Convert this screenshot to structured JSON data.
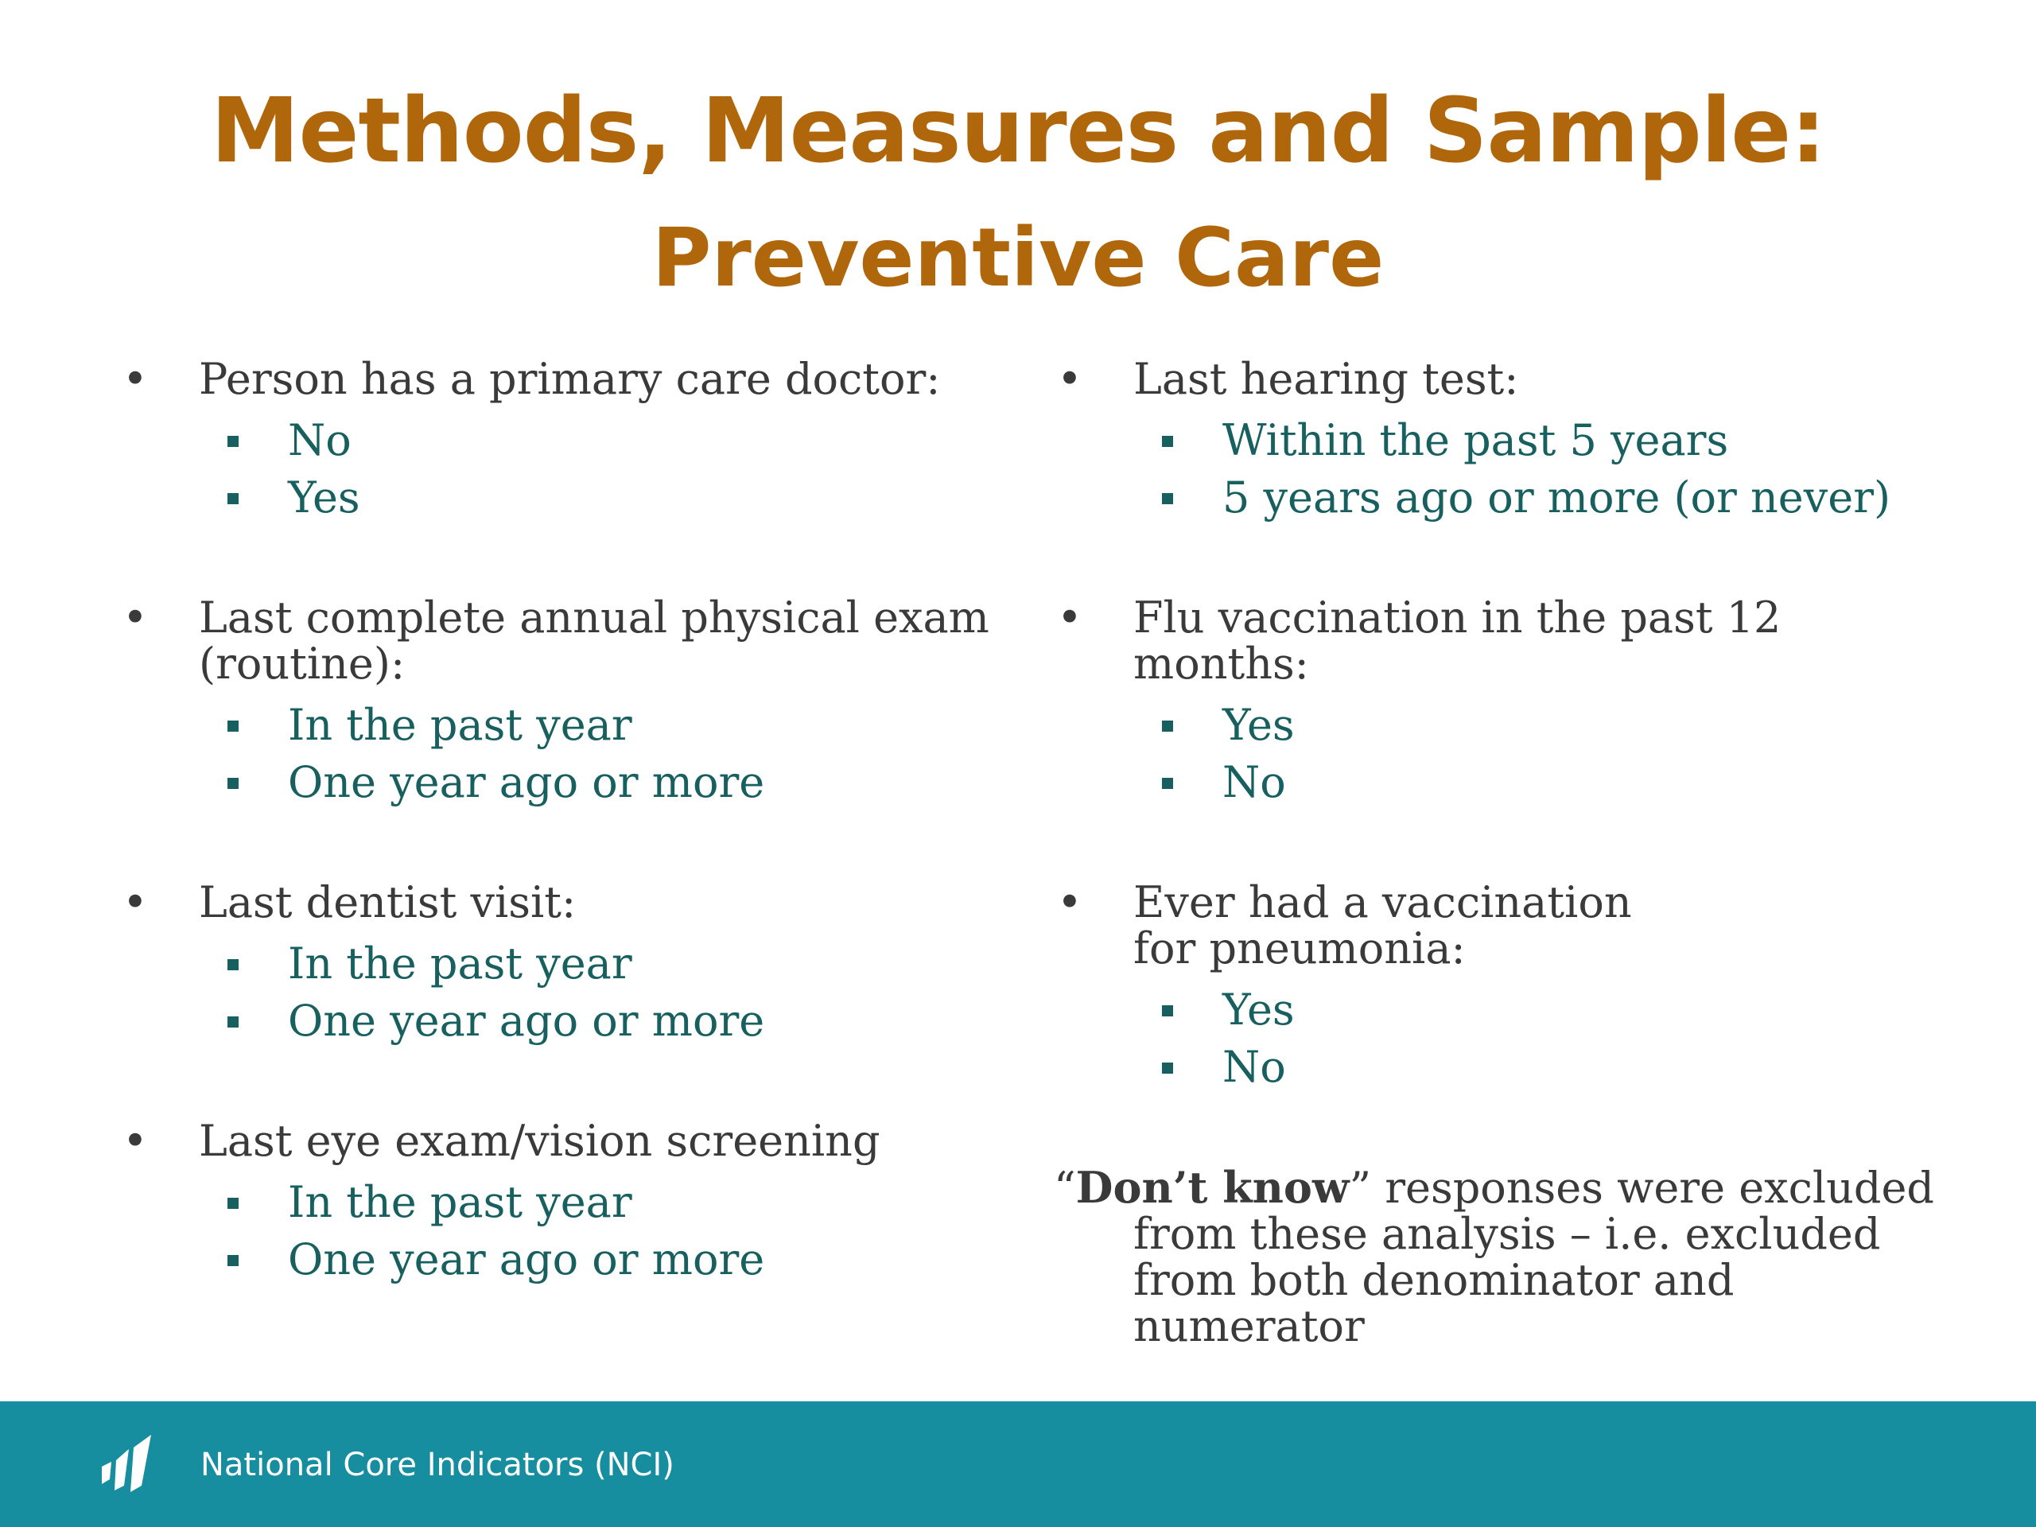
{
  "slide": {
    "title_line1": "Methods, Measures and Sample:",
    "title_line2": "Preventive Care"
  },
  "left_column": [
    {
      "heading": "Person has a primary care doctor:",
      "options": [
        "No",
        "Yes"
      ]
    },
    {
      "heading": "Last complete annual physical exam (routine):",
      "options": [
        "In the past year",
        "One year ago or more"
      ]
    },
    {
      "heading": "Last dentist visit:",
      "options": [
        "In the past year",
        "One year ago or more"
      ]
    },
    {
      "heading": "Last eye exam/vision screening",
      "options": [
        "In the past year",
        "One year ago or more"
      ]
    }
  ],
  "right_column": [
    {
      "heading": "Last hearing test:",
      "options": [
        "Within the past 5 years",
        "5 years ago or more (or never)"
      ]
    },
    {
      "heading": "Flu vaccination in the past 12 months:",
      "options": [
        "Yes",
        "No"
      ]
    },
    {
      "heading": "Ever had a vaccination for pneumonia:",
      "options": [
        "Yes",
        "No"
      ]
    }
  ],
  "note": {
    "open_quote": "“",
    "bold": "Don’t know",
    "rest": "” responses were excluded from these analysis – i.e. excluded from both denominator and numerator"
  },
  "footer": {
    "org_name": "National Core Indicators (NCI)",
    "logo_icon": "nci-logo-icon"
  },
  "colors": {
    "title": "#b0670c",
    "body_text": "#3a3a3a",
    "option_text": "#17605f",
    "footer_bg": "#178ea0"
  }
}
